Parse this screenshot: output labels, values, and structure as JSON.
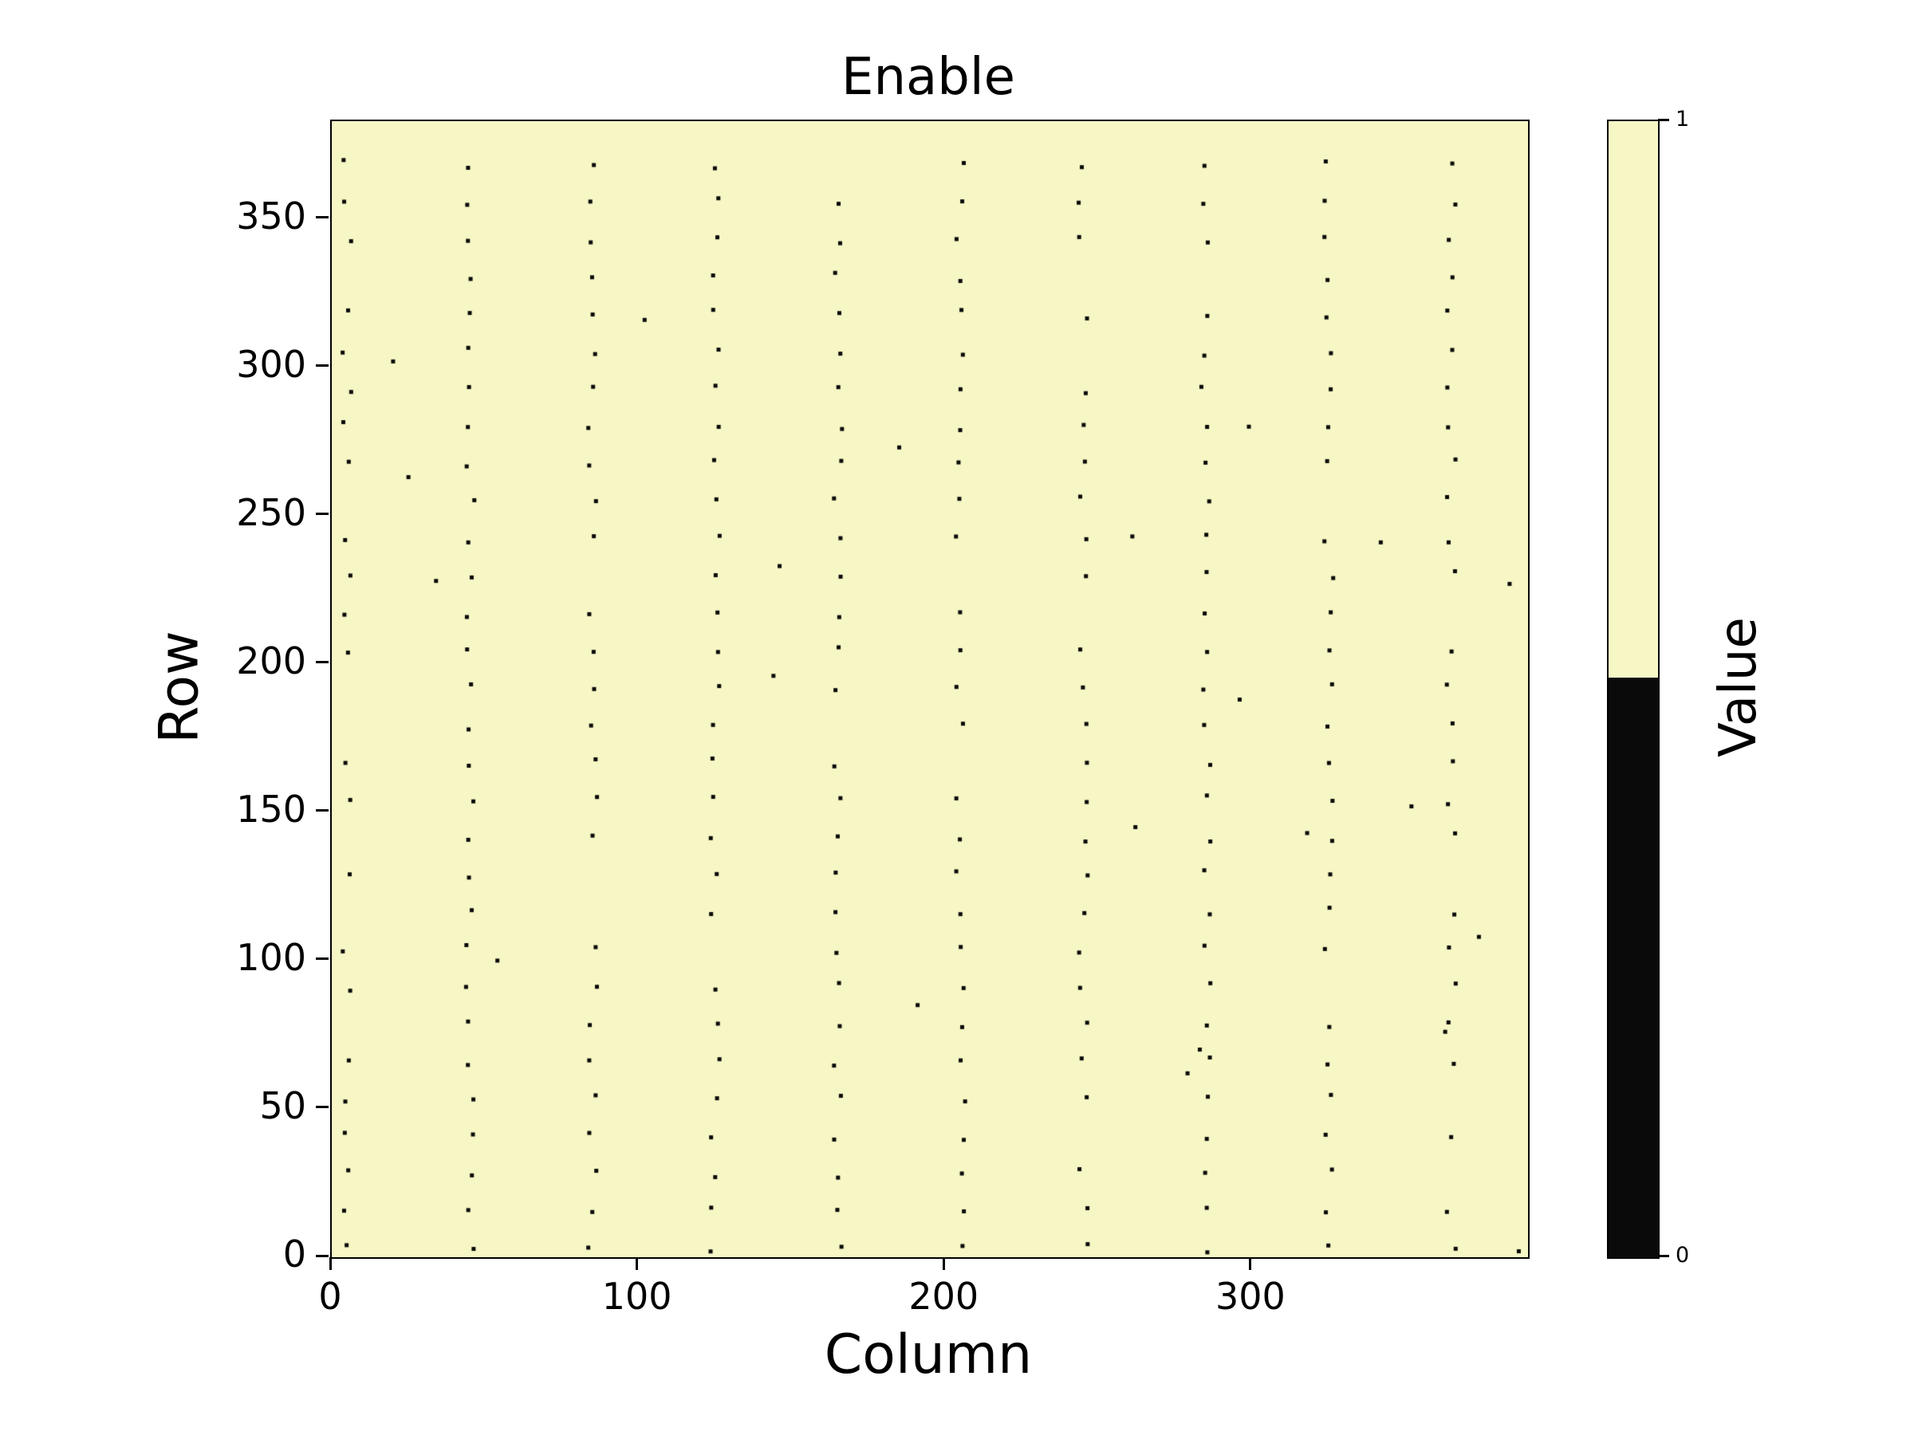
{
  "chart_data": {
    "type": "heatmap",
    "title": "Enable",
    "xlabel": "Column",
    "ylabel": "Row",
    "x_range": [
      0,
      390
    ],
    "y_range": [
      0,
      383
    ],
    "x_ticks": [
      0,
      100,
      200,
      300
    ],
    "y_ticks": [
      0,
      50,
      100,
      150,
      200,
      250,
      300,
      350
    ],
    "grid": false,
    "colors": {
      "value_one": "#f7f7c6",
      "value_zero": "#0a0a0a"
    },
    "background_value": 1,
    "colorbar": {
      "label": "Value",
      "tick_top": "1",
      "tick_bottom": "0",
      "black_boundary_frac_from_top": 0.49,
      "position": "right"
    },
    "zero_pattern": {
      "description": "sparse black dots (value 0) arranged in dotted vertical columns on a uniform value-1 background",
      "column_centers": [
        5,
        45,
        85,
        125,
        165,
        205,
        245,
        285,
        325,
        365
      ],
      "row_start": 3,
      "row_step": 12.6,
      "column_jitter": 3,
      "row_jitter": 3,
      "skip_probability": 0.08,
      "seed": 42
    },
    "extra_zero_points": [
      [
        102,
        316
      ],
      [
        20,
        302
      ],
      [
        185,
        273
      ],
      [
        146,
        233
      ],
      [
        25,
        263
      ],
      [
        261,
        243
      ],
      [
        342,
        241
      ],
      [
        384,
        227
      ],
      [
        144,
        196
      ],
      [
        34,
        228
      ],
      [
        54,
        100
      ],
      [
        262,
        145
      ],
      [
        318,
        143
      ],
      [
        374,
        108
      ],
      [
        191,
        85
      ],
      [
        283,
        70
      ],
      [
        279,
        62
      ],
      [
        363,
        76
      ],
      [
        299,
        280
      ],
      [
        387,
        2
      ],
      [
        352,
        152
      ],
      [
        296,
        188
      ]
    ]
  }
}
